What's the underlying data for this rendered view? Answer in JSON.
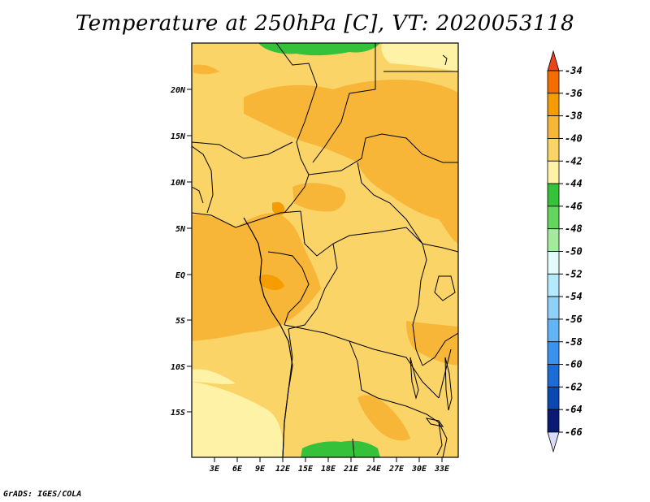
{
  "title": "Temperature at 250hPa [C], VT: 2020053118",
  "credit": "GrADS: IGES/COLA",
  "lat_labels": [
    "20N",
    "15N",
    "10N",
    "5N",
    "EQ",
    "5S",
    "10S",
    "15S"
  ],
  "lon_labels": [
    "3E",
    "6E",
    "9E",
    "12E",
    "15E",
    "18E",
    "21E",
    "24E",
    "27E",
    "30E",
    "33E"
  ],
  "legend": {
    "labels": [
      "-34",
      "-36",
      "-38",
      "-40",
      "-42",
      "-44",
      "-46",
      "-48",
      "-50",
      "-52",
      "-54",
      "-56",
      "-58",
      "-60",
      "-62",
      "-64",
      "-66"
    ],
    "colors": [
      "#e8451c",
      "#f56d00",
      "#f59c00",
      "#f8b638",
      "#fbd468",
      "#fdf2a6",
      "#36c13a",
      "#64d65e",
      "#a4ec9c",
      "#e4fbfb",
      "#b4eafc",
      "#8ed0f8",
      "#62b4f4",
      "#3a92ee",
      "#1c6cd6",
      "#0c48b2",
      "#0a1a72",
      "#d8dcfa"
    ]
  },
  "colors": {
    "deep_warm": "#f59c00",
    "warm": "#f8b638",
    "mid": "#fbd468",
    "cool": "#fdf2a6",
    "green": "#36c13a"
  },
  "icons": {
    "colorbar_top": "triangle-up-icon",
    "colorbar_bottom": "triangle-down-icon"
  }
}
